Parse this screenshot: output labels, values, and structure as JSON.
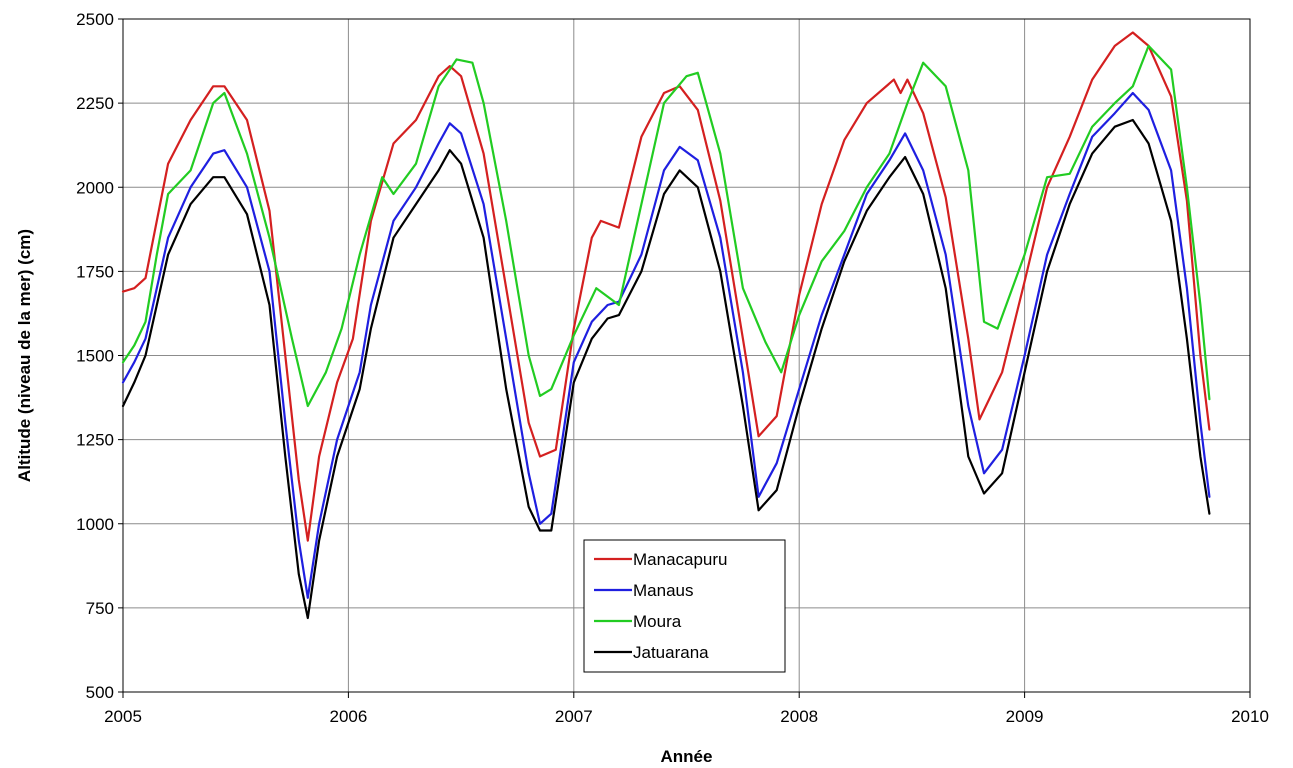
{
  "chart_data": {
    "type": "line",
    "title": "",
    "xlabel": "Année",
    "ylabel": "Altitude (niveau de la mer) (cm)",
    "xlim": [
      2005,
      2010
    ],
    "ylim": [
      500,
      2500
    ],
    "xticks": [
      2005,
      2006,
      2007,
      2008,
      2009,
      2010
    ],
    "yticks": [
      500,
      750,
      1000,
      1250,
      1500,
      1750,
      2000,
      2250,
      2500
    ],
    "grid": true,
    "legend_position": "bottom-center",
    "series": [
      {
        "name": "Manacapuru",
        "color": "#d42020",
        "x": [
          2005.0,
          2005.05,
          2005.1,
          2005.15,
          2005.2,
          2005.3,
          2005.4,
          2005.45,
          2005.55,
          2005.65,
          2005.72,
          2005.78,
          2005.82,
          2005.87,
          2005.95,
          2006.02,
          2006.1,
          2006.2,
          2006.3,
          2006.4,
          2006.45,
          2006.5,
          2006.6,
          2006.7,
          2006.8,
          2006.85,
          2006.92,
          2007.0,
          2007.08,
          2007.12,
          2007.2,
          2007.3,
          2007.4,
          2007.47,
          2007.55,
          2007.65,
          2007.75,
          2007.82,
          2007.9,
          2008.0,
          2008.1,
          2008.2,
          2008.3,
          2008.42,
          2008.45,
          2008.48,
          2008.55,
          2008.65,
          2008.75,
          2008.8,
          2008.9,
          2009.0,
          2009.1,
          2009.2,
          2009.3,
          2009.4,
          2009.48,
          2009.55,
          2009.65,
          2009.72,
          2009.78,
          2009.82
        ],
        "values": [
          1690,
          1700,
          1730,
          1900,
          2070,
          2200,
          2300,
          2300,
          2200,
          1930,
          1500,
          1130,
          950,
          1200,
          1420,
          1550,
          1900,
          2130,
          2200,
          2330,
          2360,
          2330,
          2100,
          1700,
          1300,
          1200,
          1220,
          1580,
          1850,
          1900,
          1880,
          2150,
          2280,
          2300,
          2230,
          1960,
          1550,
          1260,
          1320,
          1680,
          1950,
          2140,
          2250,
          2320,
          2280,
          2320,
          2220,
          1970,
          1550,
          1310,
          1450,
          1720,
          2000,
          2150,
          2320,
          2420,
          2460,
          2420,
          2270,
          1960,
          1500,
          1280
        ]
      },
      {
        "name": "Manaus",
        "color": "#1f1fe0",
        "x": [
          2005.0,
          2005.05,
          2005.1,
          2005.2,
          2005.3,
          2005.4,
          2005.45,
          2005.55,
          2005.65,
          2005.72,
          2005.78,
          2005.82,
          2005.87,
          2005.95,
          2006.05,
          2006.1,
          2006.2,
          2006.3,
          2006.4,
          2006.45,
          2006.5,
          2006.6,
          2006.7,
          2006.8,
          2006.85,
          2006.9,
          2007.0,
          2007.08,
          2007.15,
          2007.2,
          2007.3,
          2007.4,
          2007.47,
          2007.55,
          2007.65,
          2007.75,
          2007.82,
          2007.9,
          2008.0,
          2008.1,
          2008.2,
          2008.3,
          2008.4,
          2008.47,
          2008.55,
          2008.65,
          2008.75,
          2008.82,
          2008.9,
          2009.0,
          2009.1,
          2009.2,
          2009.3,
          2009.4,
          2009.48,
          2009.55,
          2009.65,
          2009.72,
          2009.78,
          2009.82
        ],
        "values": [
          1420,
          1480,
          1550,
          1850,
          2000,
          2100,
          2110,
          2000,
          1750,
          1300,
          950,
          780,
          1000,
          1250,
          1450,
          1650,
          1900,
          2000,
          2130,
          2190,
          2160,
          1950,
          1550,
          1150,
          1000,
          1030,
          1480,
          1600,
          1650,
          1660,
          1800,
          2050,
          2120,
          2080,
          1850,
          1450,
          1080,
          1180,
          1400,
          1620,
          1800,
          1980,
          2080,
          2160,
          2050,
          1800,
          1350,
          1150,
          1220,
          1500,
          1800,
          1980,
          2150,
          2220,
          2280,
          2230,
          2050,
          1700,
          1300,
          1080
        ]
      },
      {
        "name": "Moura",
        "color": "#22cc22",
        "x": [
          2005.0,
          2005.05,
          2005.1,
          2005.15,
          2005.2,
          2005.3,
          2005.4,
          2005.45,
          2005.55,
          2005.65,
          2005.75,
          2005.82,
          2005.9,
          2005.97,
          2006.05,
          2006.15,
          2006.2,
          2006.3,
          2006.4,
          2006.48,
          2006.55,
          2006.6,
          2006.7,
          2006.8,
          2006.85,
          2006.9,
          2007.0,
          2007.1,
          2007.2,
          2007.3,
          2007.4,
          2007.5,
          2007.55,
          2007.65,
          2007.75,
          2007.85,
          2007.92,
          2008.0,
          2008.1,
          2008.2,
          2008.3,
          2008.4,
          2008.48,
          2008.55,
          2008.65,
          2008.75,
          2008.82,
          2008.88,
          2009.0,
          2009.1,
          2009.2,
          2009.3,
          2009.4,
          2009.48,
          2009.55,
          2009.65,
          2009.72,
          2009.78,
          2009.82
        ],
        "values": [
          1480,
          1530,
          1600,
          1800,
          1980,
          2050,
          2250,
          2280,
          2100,
          1850,
          1550,
          1350,
          1450,
          1580,
          1800,
          2030,
          1980,
          2070,
          2300,
          2380,
          2370,
          2250,
          1900,
          1500,
          1380,
          1400,
          1560,
          1700,
          1650,
          1950,
          2250,
          2330,
          2340,
          2100,
          1700,
          1540,
          1450,
          1620,
          1780,
          1870,
          2000,
          2100,
          2250,
          2370,
          2300,
          2050,
          1600,
          1580,
          1800,
          2030,
          2040,
          2180,
          2250,
          2300,
          2420,
          2350,
          2000,
          1650,
          1370
        ]
      },
      {
        "name": "Jatuarana",
        "color": "#000000",
        "x": [
          2005.0,
          2005.05,
          2005.1,
          2005.2,
          2005.3,
          2005.4,
          2005.45,
          2005.55,
          2005.65,
          2005.72,
          2005.78,
          2005.82,
          2005.87,
          2005.95,
          2006.05,
          2006.1,
          2006.2,
          2006.3,
          2006.4,
          2006.45,
          2006.5,
          2006.6,
          2006.7,
          2006.8,
          2006.85,
          2006.9,
          2007.0,
          2007.08,
          2007.15,
          2007.2,
          2007.3,
          2007.4,
          2007.47,
          2007.55,
          2007.65,
          2007.75,
          2007.82,
          2007.9,
          2008.0,
          2008.1,
          2008.2,
          2008.3,
          2008.4,
          2008.47,
          2008.55,
          2008.65,
          2008.75,
          2008.82,
          2008.9,
          2009.0,
          2009.1,
          2009.2,
          2009.3,
          2009.4,
          2009.48,
          2009.55,
          2009.65,
          2009.72,
          2009.78,
          2009.82
        ],
        "values": [
          1350,
          1420,
          1500,
          1800,
          1950,
          2030,
          2030,
          1920,
          1650,
          1200,
          850,
          720,
          950,
          1200,
          1400,
          1580,
          1850,
          1950,
          2050,
          2110,
          2070,
          1850,
          1400,
          1050,
          980,
          980,
          1420,
          1550,
          1610,
          1620,
          1750,
          1980,
          2050,
          2000,
          1750,
          1350,
          1040,
          1100,
          1350,
          1580,
          1780,
          1930,
          2030,
          2090,
          1980,
          1700,
          1200,
          1090,
          1150,
          1450,
          1750,
          1950,
          2100,
          2180,
          2200,
          2130,
          1900,
          1550,
          1200,
          1030
        ]
      }
    ]
  }
}
